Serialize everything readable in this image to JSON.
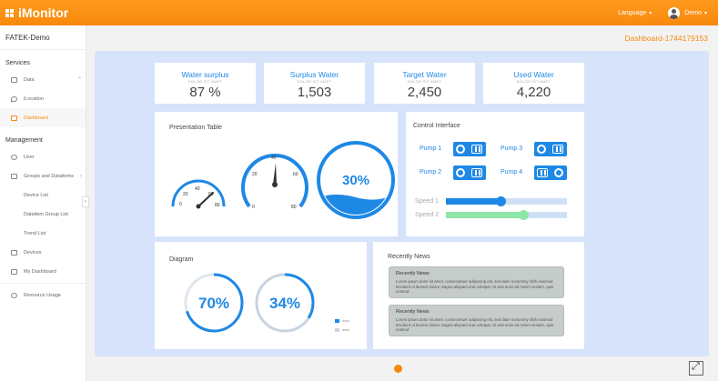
{
  "header": {
    "app_name": "iMonitor",
    "language_label": "Language",
    "user_name": "Demo"
  },
  "sidebar": {
    "project": "FATEK-Demo",
    "section_services": "Services",
    "section_management": "Management",
    "services": [
      {
        "label": "Data"
      },
      {
        "label": "iLocation"
      },
      {
        "label": "Dashboard"
      }
    ],
    "management": [
      {
        "label": "User"
      },
      {
        "label": "Groups and Dataitems"
      },
      {
        "label": "Device List"
      },
      {
        "label": "Dataitem Group List"
      },
      {
        "label": "Trend List"
      },
      {
        "label": "Devices"
      },
      {
        "label": "My Dashboard"
      },
      {
        "label": "Resource Usage"
      }
    ]
  },
  "dashboard_id": "Dashboard-1744179153",
  "stats": [
    {
      "title": "Water surplus",
      "sub": "DOLOR SIT AMET",
      "value": "87 %"
    },
    {
      "title": "Surplus Water",
      "sub": "DOLOR SIT AMET",
      "value": "1,503"
    },
    {
      "title": "Target Water",
      "sub": "DOLOR SIT AMET",
      "value": "2,450"
    },
    {
      "title": "Used Water",
      "sub": "DOLOR SIT AMET",
      "value": "4,220"
    }
  ],
  "presentation": {
    "title": "Presentation Table",
    "gauge1": {
      "ticks": [
        "0",
        "20",
        "40",
        "60",
        "80"
      ],
      "value": 55
    },
    "gauge2": {
      "ticks": [
        "0",
        "20",
        "40",
        "60",
        "80"
      ],
      "value": 38
    },
    "tank_value": "30%",
    "tank_level": 0.3,
    "accent": "#1e88e5"
  },
  "control": {
    "title": "Control Interface",
    "pumps": [
      {
        "label": "Pump 1",
        "state": "off"
      },
      {
        "label": "Pump 2",
        "state": "off"
      },
      {
        "label": "Pump 3",
        "state": "off"
      },
      {
        "label": "Pump 4",
        "state": "on"
      }
    ],
    "speed1": {
      "label": "Speed 1",
      "value": 0.45,
      "color": "#1e88e5"
    },
    "speed2": {
      "label": "Speed 2",
      "value": 0.64,
      "color": "#8ee6a6"
    }
  },
  "diagram": {
    "title": "Diagram",
    "donut1": {
      "label": "70%",
      "value": 0.7,
      "color": "#1e88e5"
    },
    "donut2": {
      "label": "34%",
      "value": 0.34,
      "color": "#c8d4e0"
    },
    "legend": [
      {
        "label": "dolor",
        "color": "#1e88e5"
      },
      {
        "label": "amet",
        "color": "#c8d4e0"
      }
    ]
  },
  "news": {
    "title": "Recently News",
    "items": [
      {
        "heading": "Recently News",
        "body": "Lorem ipsum dolor sit amet, consectetuer adipiscing elit, sed diam nonummy nibh euismod tincidunt ut laoreet dolore magna aliquam erat volutpat. Ut wisi enim ad minim veniam, quis nostrud"
      },
      {
        "heading": "Recently News",
        "body": "Lorem ipsum dolor sit amet, consectetuer adipiscing elit, sed diam nonummy nibh euismod tincidunt ut laoreet dolore magna aliquam erat volutpat. Ut wisi enim ad minim veniam, quis nostrud"
      }
    ]
  }
}
